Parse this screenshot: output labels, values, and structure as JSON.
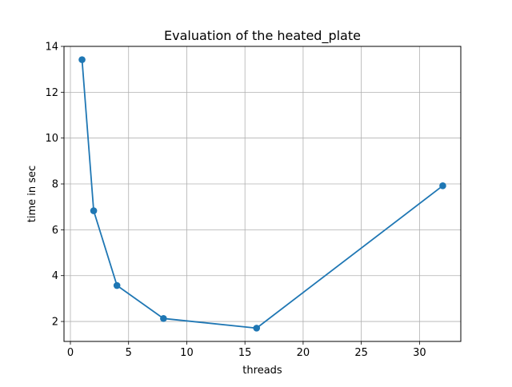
{
  "chart_data": {
    "type": "line",
    "title": "Evaluation of the heated_plate",
    "xlabel": "threads",
    "ylabel": "time in sec",
    "xlim": [
      -0.55,
      33.55
    ],
    "ylim": [
      1.13,
      14.0
    ],
    "xticks": [
      0,
      5,
      10,
      15,
      20,
      25,
      30
    ],
    "yticks": [
      2,
      4,
      6,
      8,
      10,
      12,
      14
    ],
    "grid": true,
    "series": [
      {
        "x": [
          1,
          2,
          4,
          8,
          16,
          32
        ],
        "y": [
          13.42,
          6.83,
          3.57,
          2.13,
          1.71,
          7.92
        ],
        "color": "#1f77b4",
        "marker": "circle"
      }
    ]
  }
}
